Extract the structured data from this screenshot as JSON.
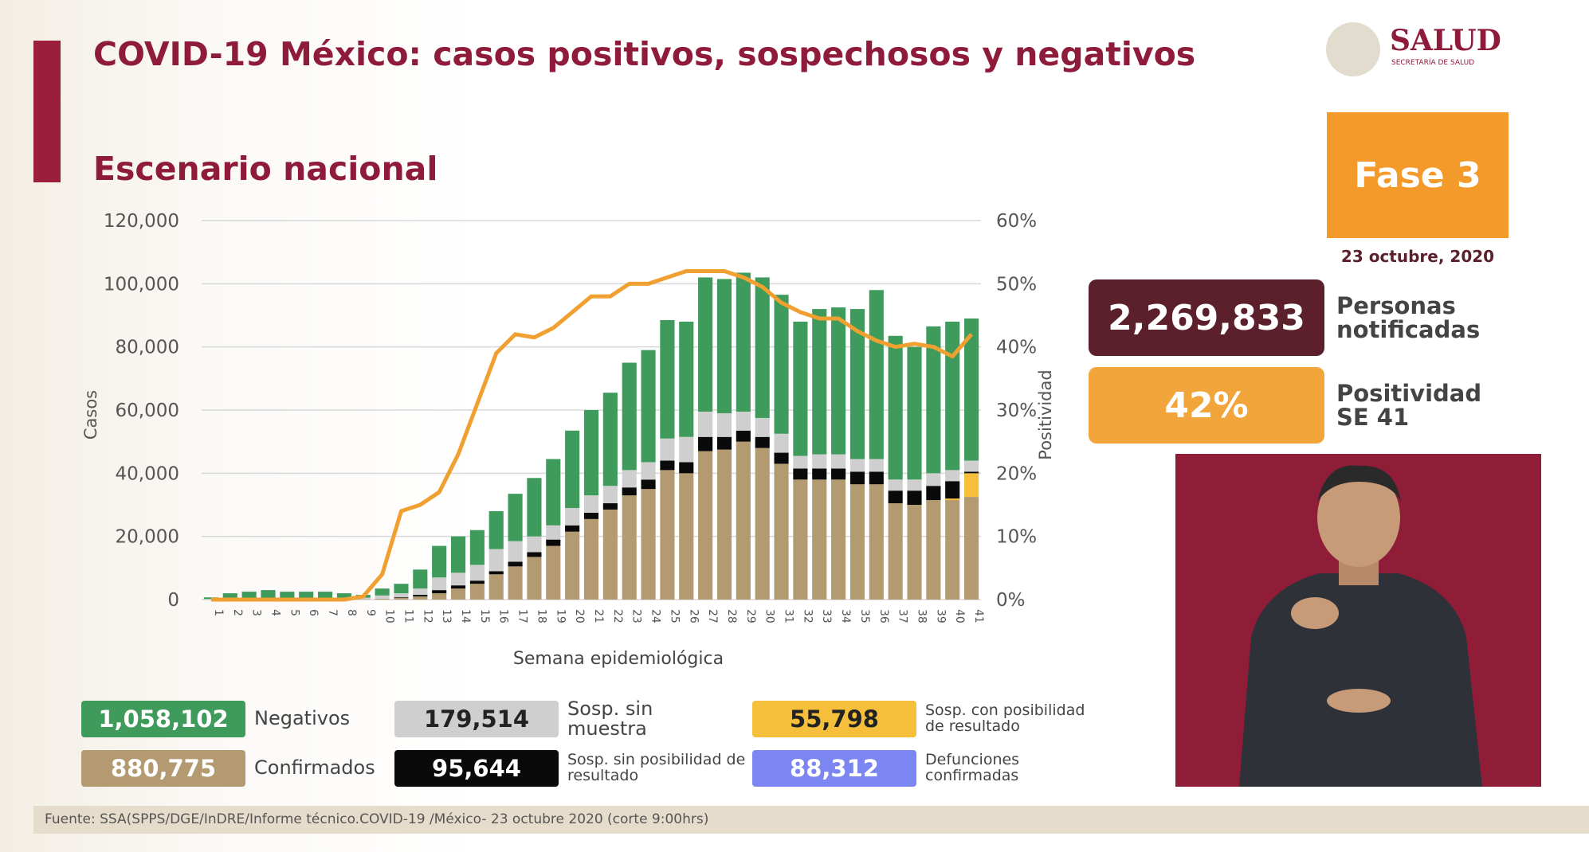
{
  "header": {
    "title": "COVID-19 México: casos positivos, sospechosos y negativos",
    "subtitle": "Escenario nacional",
    "logo": "SALUD",
    "logo_sub": "SECRETARÍA DE SALUD"
  },
  "phase": {
    "label": "Fase 3",
    "date": "23 octubre, 2020"
  },
  "stats": [
    {
      "value": "2,269,833",
      "label": "Personas notificadas",
      "color": "#5c1f2c"
    },
    {
      "value": "42%",
      "label": "Positividad SE 41",
      "color": "#f2a53b"
    }
  ],
  "deaths": {
    "total": "88,312",
    "name": "Defunciones confirmadas",
    "color": "#7b86f2"
  },
  "source": "Fuente: SSA(SPPS/DGE/InDRE/Informe técnico.COVID-19 /México- 23 octubre 2020 (corte 9:00hrs)",
  "chart_data": {
    "type": "bar",
    "stacked": true,
    "x_label": "Semana epidemiológica",
    "y_label": "Casos",
    "y2_label": "Positividad",
    "categories": [
      "1",
      "2",
      "3",
      "4",
      "5",
      "6",
      "7",
      "8",
      "9",
      "10",
      "11",
      "12",
      "13",
      "14",
      "15",
      "16",
      "17",
      "18",
      "19",
      "20",
      "21",
      "22",
      "23",
      "24",
      "25",
      "26",
      "27",
      "28",
      "29",
      "30",
      "31",
      "32",
      "33",
      "34",
      "35",
      "36",
      "37",
      "38",
      "39",
      "40",
      "41"
    ],
    "ylim": [
      0,
      120000
    ],
    "yticks": [
      0,
      {
        "value": 20000,
        "label": "20,000"
      },
      {
        "value": 40000,
        "label": "40,000"
      },
      {
        "value": 60000,
        "label": "60,000"
      },
      {
        "value": 80000,
        "label": "80,000"
      },
      {
        "value": 100000,
        "label": "100,000"
      },
      {
        "value": 120000,
        "label": "120,000"
      }
    ],
    "y2lim": [
      0,
      60
    ],
    "y2ticks": [
      {
        "value": 0,
        "label": "0%"
      },
      {
        "value": 10,
        "label": "10%"
      },
      {
        "value": 20,
        "label": "20%"
      },
      {
        "value": 30,
        "label": "30%"
      },
      {
        "value": 40,
        "label": "40%"
      },
      {
        "value": 50,
        "label": "50%"
      },
      {
        "value": 60,
        "label": "60%"
      }
    ],
    "grid": true,
    "series": [
      {
        "name": "Confirmados",
        "total": "880,775",
        "color": "#b39a70",
        "text_color": "#ffffff",
        "values": [
          0,
          0,
          0,
          0,
          0,
          0,
          0,
          0,
          100,
          300,
          600,
          1000,
          2000,
          3500,
          5000,
          8000,
          10500,
          13500,
          17000,
          21500,
          25500,
          28500,
          33000,
          35000,
          41000,
          40000,
          47000,
          47500,
          50000,
          48000,
          43000,
          38000,
          38000,
          38000,
          36500,
          36500,
          30500,
          30000,
          31500,
          31500,
          32500
        ]
      },
      {
        "name": "Sosp. con posibilidad de resultado",
        "total": "55,798",
        "color": "#f5bf3b",
        "text_color": "#222222",
        "values": [
          0,
          0,
          0,
          0,
          0,
          0,
          0,
          0,
          0,
          0,
          0,
          0,
          0,
          0,
          0,
          0,
          0,
          0,
          0,
          0,
          0,
          0,
          0,
          0,
          0,
          0,
          0,
          0,
          0,
          0,
          0,
          0,
          0,
          0,
          0,
          0,
          0,
          0,
          0,
          500,
          7500
        ]
      },
      {
        "name": "Sosp. sin posibilidad de resultado",
        "total": "95,644",
        "color": "#0a0a0a",
        "text_color": "#ffffff",
        "values": [
          0,
          0,
          0,
          0,
          0,
          0,
          0,
          0,
          0,
          0,
          200,
          500,
          1000,
          1000,
          1000,
          1000,
          1500,
          1500,
          2000,
          2000,
          2000,
          2000,
          2500,
          3000,
          3000,
          3500,
          4500,
          4000,
          3500,
          3500,
          3500,
          3500,
          3500,
          3500,
          4000,
          4000,
          4000,
          4500,
          4500,
          5500,
          500
        ]
      },
      {
        "name": "Sosp. sin muestra",
        "total": "179,514",
        "color": "#cfcfcf",
        "text_color": "#222222",
        "values": [
          200,
          500,
          500,
          500,
          500,
          500,
          500,
          500,
          500,
          1000,
          1200,
          2000,
          4000,
          4000,
          5000,
          7000,
          6500,
          5000,
          4500,
          5500,
          5500,
          5500,
          5500,
          5500,
          7000,
          8000,
          8000,
          7500,
          6000,
          6000,
          6000,
          4000,
          4500,
          4500,
          4000,
          4000,
          3500,
          3500,
          4000,
          3500,
          3500
        ]
      },
      {
        "name": "Negativos",
        "total": "1,058,102",
        "color": "#3e9b5b",
        "text_color": "#ffffff",
        "values": [
          500,
          1500,
          2000,
          2500,
          2000,
          2000,
          2000,
          1500,
          900,
          2200,
          3000,
          6000,
          10000,
          11500,
          11000,
          12000,
          15000,
          18500,
          21000,
          24500,
          27000,
          29500,
          34000,
          35500,
          37500,
          36500,
          42500,
          42500,
          44000,
          44500,
          44000,
          42500,
          46000,
          46500,
          47500,
          53500,
          45500,
          42000,
          46500,
          47000,
          45000
        ]
      },
      {
        "type": "line",
        "axis": "y2",
        "color": "#f0a030",
        "values": [
          0,
          0,
          0,
          0,
          0,
          0,
          0,
          0,
          0.5,
          4,
          14,
          15,
          17,
          23,
          31,
          39,
          42,
          41.5,
          43,
          45.5,
          48,
          48,
          50,
          50,
          51,
          52,
          52,
          52,
          51,
          49.5,
          47,
          45.5,
          44.5,
          44.5,
          42.5,
          41,
          40,
          40.5,
          40,
          38.5,
          42
        ]
      }
    ]
  }
}
